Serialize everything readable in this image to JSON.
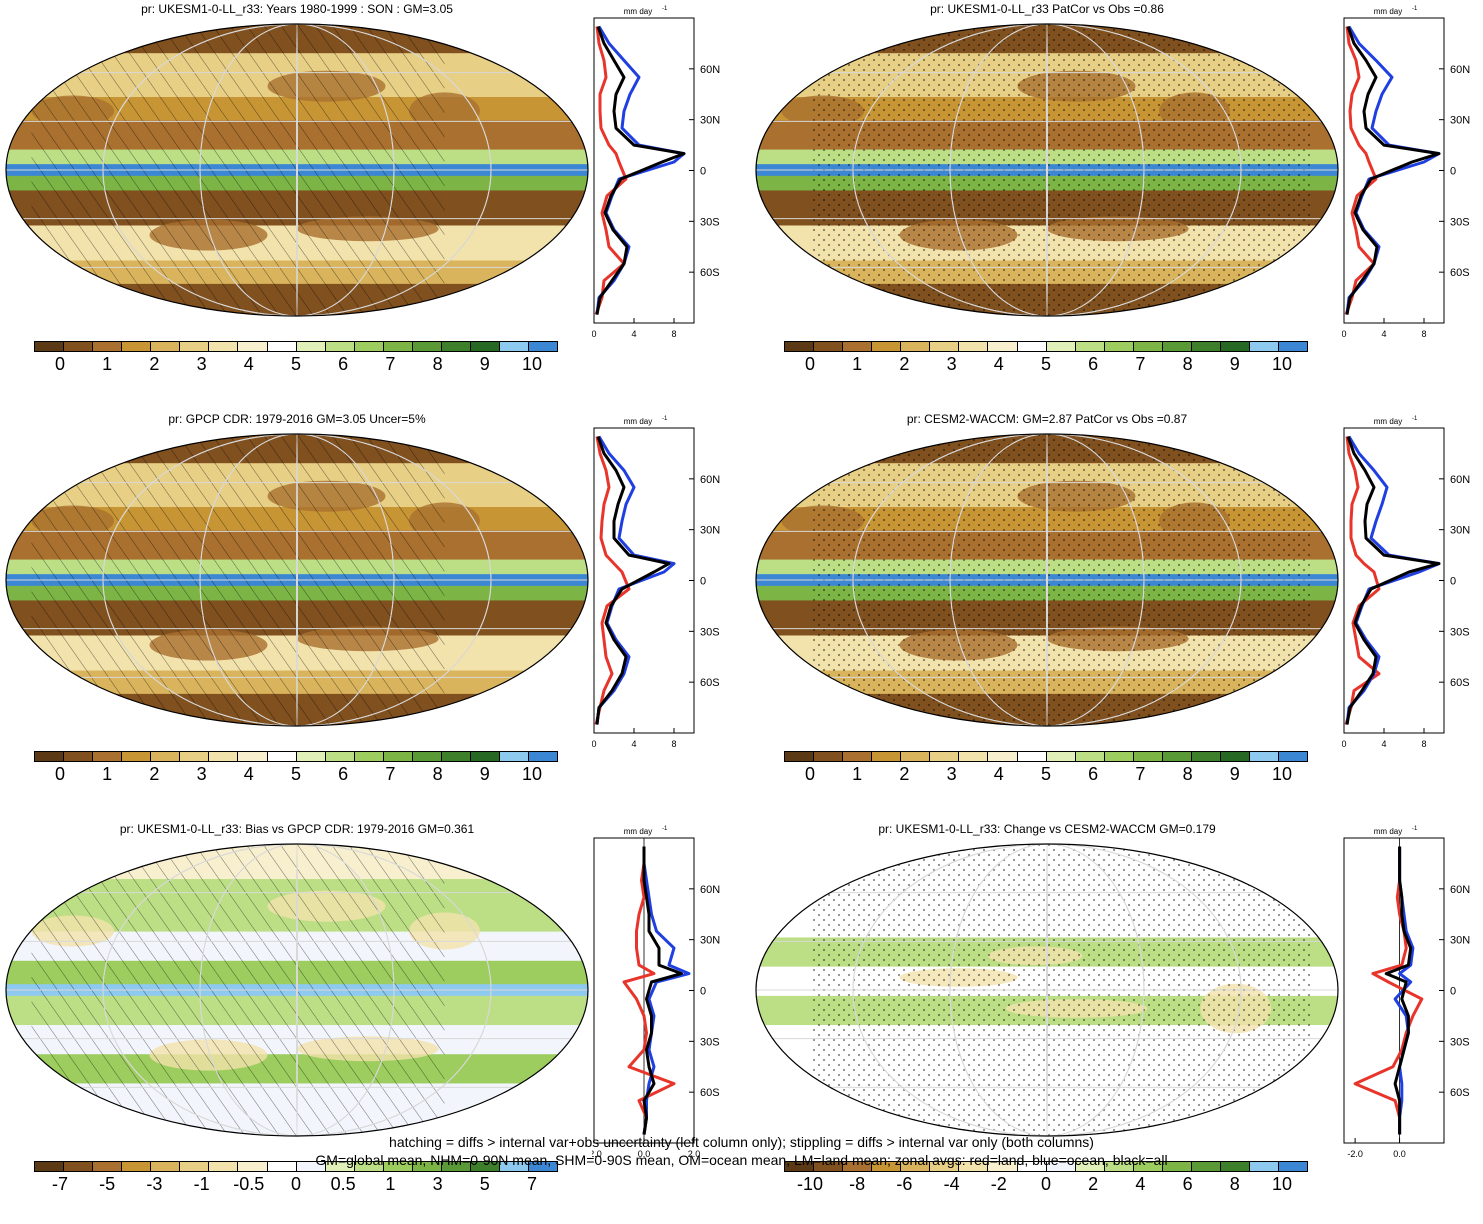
{
  "colors": {
    "land": "#e8352b",
    "ocean": "#1f3fe0",
    "all": "#000000",
    "precip_palette": [
      "#5b3914",
      "#80501f",
      "#a9702f",
      "#c89535",
      "#d9b45c",
      "#e8cf86",
      "#f2e2ab",
      "#f8efcf",
      "#ffffff",
      "#e0f0b8",
      "#bcdf86",
      "#9ccd5e",
      "#7cb545",
      "#5a9a36",
      "#3d7f2b",
      "#266824",
      "#8ec9ef",
      "#3b87d4"
    ],
    "bias_palette": [
      "#5b3914",
      "#80501f",
      "#a9702f",
      "#c89535",
      "#d9b45c",
      "#e8cf86",
      "#f2e2ab",
      "#f8efcf",
      "#ffffff",
      "#f2f5fb",
      "#e0f0b8",
      "#bcdf86",
      "#9ccd5e",
      "#7cb545",
      "#5a9a36",
      "#3d7f2b",
      "#8ec9ef",
      "#3b87d4"
    ]
  },
  "panels": [
    {
      "id": "p1",
      "title": "pr: UKESM1-0-LL_r33: Years 1980-1999 : SON : GM=3.05",
      "colorbar_labels": [
        "0",
        "1",
        "2",
        "3",
        "4",
        "5",
        "6",
        "7",
        "8",
        "9",
        "10"
      ],
      "colorbar_palette": "precip",
      "overlay": "hatch",
      "zonal_xticks": [
        "0",
        "4",
        "8"
      ],
      "zonal_yticks": [
        "60N",
        "30N",
        "0",
        "30S",
        "60S"
      ],
      "zonal_units": "mm day",
      "zonal_units_sup": "-1",
      "kind": "mean"
    },
    {
      "id": "p2",
      "title": "pr: UKESM1-0-LL_r33 PatCor vs Obs =0.86",
      "colorbar_labels": [
        "0",
        "1",
        "2",
        "3",
        "4",
        "5",
        "6",
        "7",
        "8",
        "9",
        "10"
      ],
      "colorbar_palette": "precip",
      "overlay": "stipple",
      "zonal_xticks": [
        "0",
        "4",
        "8"
      ],
      "zonal_yticks": [
        "60N",
        "30N",
        "0",
        "30S",
        "60S"
      ],
      "zonal_units": "mm day",
      "zonal_units_sup": "-1",
      "kind": "mean"
    },
    {
      "id": "p3",
      "title": "pr: GPCP CDR: 1979-2016 GM=3.05 Uncer=5%",
      "colorbar_labels": [
        "0",
        "1",
        "2",
        "3",
        "4",
        "5",
        "6",
        "7",
        "8",
        "9",
        "10"
      ],
      "colorbar_palette": "precip",
      "overlay": "hatch",
      "zonal_xticks": [
        "0",
        "4",
        "8"
      ],
      "zonal_yticks": [
        "60N",
        "30N",
        "0",
        "30S",
        "60S"
      ],
      "zonal_units": "mm day",
      "zonal_units_sup": "-1",
      "kind": "mean"
    },
    {
      "id": "p4",
      "title": "pr: CESM2-WACCM: GM=2.87 PatCor vs Obs =0.87",
      "colorbar_labels": [
        "0",
        "1",
        "2",
        "3",
        "4",
        "5",
        "6",
        "7",
        "8",
        "9",
        "10"
      ],
      "colorbar_palette": "precip",
      "overlay": "stipple",
      "zonal_xticks": [
        "0",
        "4",
        "8"
      ],
      "zonal_yticks": [
        "60N",
        "30N",
        "0",
        "30S",
        "60S"
      ],
      "zonal_units": "mm day",
      "zonal_units_sup": "-1",
      "kind": "mean"
    },
    {
      "id": "p5",
      "title": "pr: UKESM1-0-LL_r33: Bias vs GPCP CDR: 1979-2016  GM=0.361",
      "colorbar_labels": [
        "-7",
        "-5",
        "-3",
        "-1",
        "-0.5",
        "0",
        "0.5",
        "1",
        "3",
        "5",
        "7"
      ],
      "colorbar_palette": "bias",
      "overlay": "hatch",
      "zonal_xticks": [
        "-2.0",
        "0.0",
        "2.0"
      ],
      "zonal_yticks": [
        "60N",
        "30N",
        "0",
        "30S",
        "60S"
      ],
      "zonal_units": "mm day",
      "zonal_units_sup": "-1",
      "kind": "bias"
    },
    {
      "id": "p6",
      "title": "pr: UKESM1-0-LL_r33: Change vs CESM2-WACCM GM=0.179",
      "colorbar_labels": [
        "-10",
        "-8",
        "-6",
        "-4",
        "-2",
        "0",
        "2",
        "4",
        "6",
        "8",
        "10"
      ],
      "colorbar_palette": "bias",
      "overlay": "stipple",
      "zonal_xticks": [
        "-2.0",
        "0.0"
      ],
      "zonal_yticks": [
        "60N",
        "30N",
        "0",
        "30S",
        "60S"
      ],
      "zonal_units": "mm day",
      "zonal_units_sup": "-1",
      "kind": "change"
    }
  ],
  "chart_data": [
    {
      "type": "line",
      "panel": "p1",
      "y_axis": "latitude",
      "x_range": [
        0,
        10
      ],
      "y_range": [
        -90,
        90
      ],
      "latitudes": [
        -85,
        -75,
        -65,
        -55,
        -45,
        -35,
        -25,
        -15,
        -5,
        5,
        10,
        15,
        25,
        35,
        45,
        55,
        65,
        75,
        85
      ],
      "series": [
        {
          "name": "land",
          "values": [
            0.2,
            0.8,
            1.0,
            3.0,
            1.5,
            1.2,
            0.8,
            1.3,
            3.2,
            2.5,
            2.2,
            1.5,
            0.7,
            0.6,
            0.6,
            1.2,
            1.0,
            0.5,
            0.3
          ]
        },
        {
          "name": "ocean",
          "values": [
            0.3,
            0.5,
            2.0,
            3.0,
            3.5,
            2.0,
            1.2,
            1.8,
            2.5,
            8.0,
            9.0,
            4.5,
            2.8,
            3.0,
            3.6,
            4.5,
            3.0,
            1.5,
            0.5
          ]
        },
        {
          "name": "all",
          "values": [
            0.3,
            0.6,
            1.8,
            3.0,
            3.3,
            1.9,
            1.1,
            1.7,
            2.7,
            6.8,
            9.0,
            4.0,
            2.2,
            2.0,
            2.2,
            3.0,
            2.0,
            1.0,
            0.4
          ]
        }
      ]
    },
    {
      "type": "line",
      "panel": "p2",
      "y_axis": "latitude",
      "x_range": [
        0,
        10
      ],
      "y_range": [
        -90,
        90
      ],
      "latitudes": [
        -85,
        -75,
        -65,
        -55,
        -45,
        -35,
        -25,
        -15,
        -5,
        5,
        10,
        15,
        25,
        35,
        45,
        55,
        65,
        75,
        85
      ],
      "series": [
        {
          "name": "land",
          "values": [
            0.2,
            0.8,
            1.2,
            3.0,
            1.5,
            1.2,
            0.8,
            1.3,
            3.2,
            2.5,
            2.2,
            1.5,
            0.7,
            0.6,
            0.8,
            1.5,
            1.2,
            0.5,
            0.3
          ]
        },
        {
          "name": "ocean",
          "values": [
            0.3,
            0.5,
            2.0,
            3.0,
            3.5,
            2.0,
            1.2,
            1.8,
            2.5,
            8.0,
            9.5,
            4.5,
            2.8,
            3.2,
            3.8,
            4.8,
            3.2,
            1.5,
            0.5
          ]
        },
        {
          "name": "all",
          "values": [
            0.3,
            0.6,
            1.8,
            3.0,
            3.3,
            1.9,
            1.1,
            1.7,
            2.7,
            6.8,
            9.5,
            4.0,
            2.2,
            2.0,
            2.4,
            3.2,
            2.2,
            1.0,
            0.4
          ]
        }
      ]
    },
    {
      "type": "line",
      "panel": "p3",
      "y_axis": "latitude",
      "x_range": [
        0,
        10
      ],
      "y_range": [
        -90,
        90
      ],
      "latitudes": [
        -85,
        -75,
        -65,
        -55,
        -45,
        -35,
        -25,
        -15,
        -5,
        5,
        10,
        15,
        25,
        35,
        45,
        55,
        65,
        75,
        85
      ],
      "series": [
        {
          "name": "land",
          "values": [
            0.2,
            0.6,
            1.0,
            1.8,
            1.2,
            1.0,
            0.8,
            1.3,
            3.5,
            2.8,
            2.0,
            1.2,
            0.7,
            0.8,
            1.0,
            1.5,
            1.2,
            0.6,
            0.3
          ]
        },
        {
          "name": "ocean",
          "values": [
            0.3,
            0.5,
            2.0,
            3.0,
            3.5,
            2.2,
            1.3,
            1.8,
            2.5,
            7.0,
            8.0,
            4.0,
            2.5,
            2.8,
            3.2,
            4.0,
            3.0,
            1.5,
            0.5
          ]
        },
        {
          "name": "all",
          "values": [
            0.3,
            0.5,
            1.8,
            2.8,
            3.2,
            2.0,
            1.2,
            1.7,
            2.8,
            6.0,
            7.5,
            3.5,
            2.0,
            2.0,
            2.4,
            3.0,
            2.2,
            1.0,
            0.4
          ]
        }
      ]
    },
    {
      "type": "line",
      "panel": "p4",
      "y_axis": "latitude",
      "x_range": [
        0,
        10
      ],
      "y_range": [
        -90,
        90
      ],
      "latitudes": [
        -85,
        -75,
        -65,
        -55,
        -45,
        -35,
        -25,
        -15,
        -5,
        5,
        10,
        15,
        25,
        35,
        45,
        55,
        65,
        75,
        85
      ],
      "series": [
        {
          "name": "land",
          "values": [
            0.2,
            0.7,
            1.0,
            3.5,
            1.5,
            1.2,
            0.9,
            1.5,
            3.5,
            3.0,
            2.0,
            1.2,
            0.7,
            0.7,
            0.8,
            1.4,
            1.1,
            0.5,
            0.3
          ]
        },
        {
          "name": "ocean",
          "values": [
            0.3,
            0.5,
            2.0,
            3.0,
            3.5,
            2.2,
            1.2,
            1.8,
            2.5,
            7.5,
            9.5,
            4.5,
            2.7,
            3.2,
            3.8,
            4.3,
            3.0,
            1.5,
            0.5
          ]
        },
        {
          "name": "all",
          "values": [
            0.3,
            0.6,
            1.8,
            2.9,
            3.2,
            2.0,
            1.1,
            1.7,
            2.7,
            6.5,
            9.5,
            4.0,
            2.2,
            2.1,
            2.3,
            3.0,
            2.1,
            1.0,
            0.4
          ]
        }
      ]
    },
    {
      "type": "line",
      "panel": "p5",
      "y_axis": "latitude",
      "x_range": [
        -2,
        2
      ],
      "y_range": [
        -90,
        90
      ],
      "latitudes": [
        -85,
        -75,
        -65,
        -55,
        -45,
        -35,
        -25,
        -15,
        -5,
        5,
        10,
        15,
        25,
        35,
        45,
        55,
        65,
        75,
        85
      ],
      "series": [
        {
          "name": "land",
          "values": [
            0.0,
            0.1,
            -0.2,
            1.2,
            -0.6,
            0.0,
            0.1,
            0.0,
            -0.3,
            -0.8,
            0.4,
            -0.2,
            -0.3,
            -0.3,
            -0.2,
            0.0,
            -0.1,
            0.0,
            0.0
          ]
        },
        {
          "name": "ocean",
          "values": [
            0.0,
            0.1,
            0.1,
            0.2,
            0.4,
            0.2,
            0.3,
            0.4,
            0.2,
            0.5,
            1.8,
            1.0,
            1.2,
            0.5,
            0.3,
            0.2,
            0.1,
            0.0,
            0.0
          ]
        },
        {
          "name": "all",
          "values": [
            0.0,
            0.1,
            0.0,
            0.4,
            0.2,
            0.1,
            0.3,
            0.3,
            0.1,
            0.3,
            1.5,
            0.6,
            0.6,
            0.2,
            0.2,
            0.1,
            0.0,
            0.0,
            0.0
          ]
        }
      ]
    },
    {
      "type": "line",
      "panel": "p6",
      "y_axis": "latitude",
      "x_range": [
        -2.5,
        2
      ],
      "y_range": [
        -90,
        90
      ],
      "latitudes": [
        -85,
        -75,
        -65,
        -55,
        -45,
        -35,
        -25,
        -15,
        -5,
        5,
        10,
        15,
        25,
        35,
        45,
        55,
        65,
        75,
        85
      ],
      "series": [
        {
          "name": "land",
          "values": [
            0.0,
            0.0,
            -0.2,
            -2.0,
            -0.3,
            0.1,
            0.3,
            0.6,
            1.0,
            -0.5,
            -1.2,
            0.1,
            0.3,
            0.2,
            0.0,
            -0.1,
            0.0,
            0.0,
            0.0
          ]
        },
        {
          "name": "ocean",
          "values": [
            0.0,
            0.0,
            0.1,
            0.1,
            0.0,
            0.2,
            0.4,
            0.3,
            -0.2,
            0.5,
            0.0,
            0.5,
            0.6,
            0.3,
            0.2,
            0.1,
            0.0,
            0.0,
            0.0
          ]
        },
        {
          "name": "all",
          "values": [
            0.0,
            0.0,
            0.0,
            -0.2,
            0.0,
            0.2,
            0.4,
            0.4,
            0.1,
            0.3,
            -0.6,
            0.4,
            0.5,
            0.2,
            0.1,
            0.1,
            0.0,
            0.0,
            0.0
          ]
        }
      ]
    }
  ],
  "footer": {
    "line1": "hatching = diffs > internal var+obs uncertainty (left column only); stippling = diffs > internal var only (both columns)",
    "line2": "GM=global mean, NHM=0-90N mean, SHM=0-90S mean, OM=ocean mean, LM=land mean; zonal avgs: red=land, blue=ocean, black=all"
  }
}
